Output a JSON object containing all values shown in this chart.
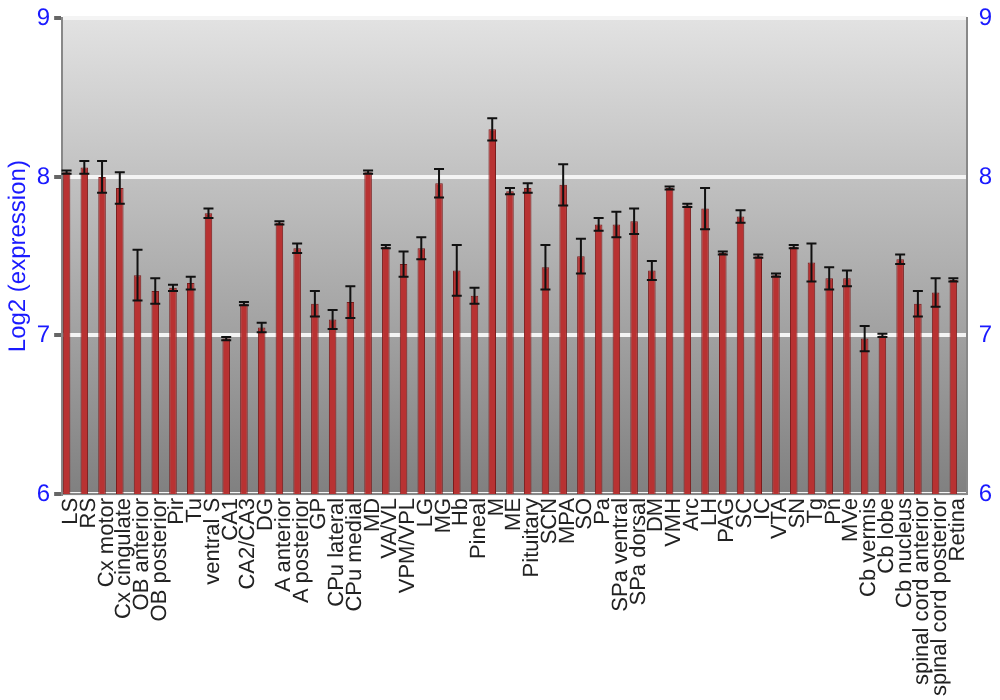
{
  "chart_data": {
    "type": "bar",
    "ylabel": "Log2 (expression)",
    "categories": [
      "LS",
      "RS",
      "Cx motor",
      "Cx cingulate",
      "OB anterior",
      "OB posterior",
      "Pir",
      "Tu",
      "ventral S",
      "CA1",
      "CA2/CA3",
      "DG",
      "A anterior",
      "A posterior",
      "GP",
      "CPu lateral",
      "CPu medial",
      "MD",
      "VA/VL",
      "VPM/VPL",
      "LG",
      "MG",
      "Hb",
      "Pineal",
      "M",
      "ME",
      "Pituitary",
      "SCN",
      "MPA",
      "SO",
      "Pa",
      "SPa ventral",
      "SPa dorsal",
      "DM",
      "VMH",
      "Arc",
      "LH",
      "PAG",
      "SC",
      "IC",
      "VTA",
      "SN",
      "Tg",
      "Pn",
      "MVe",
      "Cb vermis",
      "Cb lobe",
      "Cb nucleus",
      "spinal cord anterior",
      "spinal cord posterior",
      "Retina"
    ],
    "values": [
      8.03,
      8.06,
      8.0,
      7.93,
      7.38,
      7.28,
      7.3,
      7.33,
      7.77,
      6.98,
      7.2,
      7.05,
      7.71,
      7.55,
      7.2,
      7.1,
      7.21,
      8.03,
      7.56,
      7.45,
      7.55,
      7.96,
      7.41,
      7.25,
      8.3,
      7.91,
      7.93,
      7.43,
      7.95,
      7.5,
      7.7,
      7.7,
      7.72,
      7.41,
      7.93,
      7.82,
      7.8,
      7.52,
      7.75,
      7.5,
      7.38,
      7.56,
      7.46,
      7.36,
      7.36,
      6.98,
      7.0,
      7.48,
      7.2,
      7.27,
      7.35
    ],
    "errors": [
      0.01,
      0.04,
      0.1,
      0.1,
      0.16,
      0.08,
      0.02,
      0.04,
      0.03,
      0.01,
      0.01,
      0.03,
      0.01,
      0.03,
      0.08,
      0.06,
      0.1,
      0.01,
      0.01,
      0.08,
      0.07,
      0.09,
      0.16,
      0.05,
      0.07,
      0.02,
      0.03,
      0.14,
      0.13,
      0.11,
      0.04,
      0.08,
      0.08,
      0.06,
      0.01,
      0.01,
      0.13,
      0.01,
      0.04,
      0.01,
      0.01,
      0.01,
      0.12,
      0.07,
      0.05,
      0.08,
      0.01,
      0.03,
      0.08,
      0.09,
      0.01
    ],
    "color": "#b83232",
    "ylim": [
      6,
      9
    ],
    "yticks": [
      6,
      7,
      8,
      9
    ],
    "y2lim": [
      6,
      9
    ],
    "y2ticks": [
      6,
      7,
      8,
      9
    ],
    "grid": "y",
    "legend": false
  }
}
